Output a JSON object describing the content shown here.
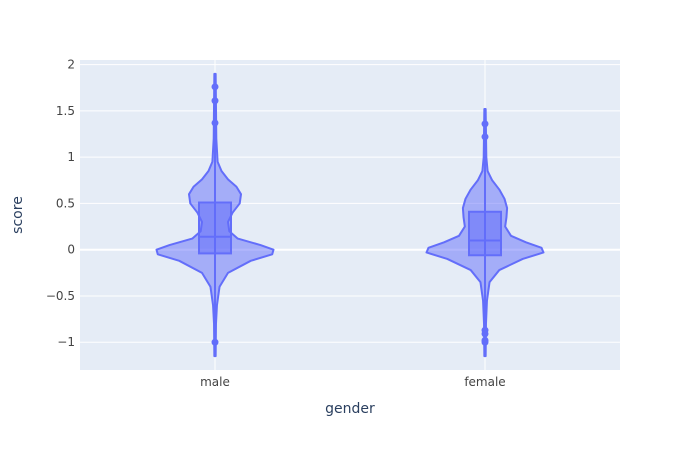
{
  "chart_data": {
    "type": "violin",
    "title": "",
    "xlabel": "gender",
    "ylabel": "score",
    "ylim": [
      -1.3,
      2.05
    ],
    "yticks": [
      -1,
      -0.5,
      0,
      0.5,
      1,
      1.5,
      2
    ],
    "ytick_labels": [
      "−1",
      "−0.5",
      "0",
      "0.5",
      "1",
      "1.5",
      "2"
    ],
    "categories": [
      "male",
      "female"
    ],
    "grid": true,
    "colors": {
      "plot_bg": "#e5ecf6",
      "grid": "#ffffff",
      "fill": "#636efa",
      "line": "#636efa",
      "text": "#444444",
      "title_text": "#2a3f5f"
    },
    "violins": [
      {
        "category": "male",
        "box": {
          "q1": -0.04,
          "median": 0.14,
          "q3": 0.51,
          "lower_fence": -0.6,
          "upper_fence": 0.9
        },
        "whisker": [
          -1.15,
          1.9
        ],
        "outliers": [
          1.76,
          1.61,
          1.37,
          -1.0
        ],
        "density": [
          [
            -1.15,
            0.01
          ],
          [
            -0.8,
            0.015
          ],
          [
            -0.6,
            0.03
          ],
          [
            -0.4,
            0.07
          ],
          [
            -0.25,
            0.2
          ],
          [
            -0.12,
            0.55
          ],
          [
            -0.05,
            0.88
          ],
          [
            0.0,
            0.9
          ],
          [
            0.05,
            0.7
          ],
          [
            0.12,
            0.35
          ],
          [
            0.2,
            0.22
          ],
          [
            0.3,
            0.2
          ],
          [
            0.4,
            0.27
          ],
          [
            0.5,
            0.38
          ],
          [
            0.6,
            0.4
          ],
          [
            0.68,
            0.33
          ],
          [
            0.76,
            0.2
          ],
          [
            0.85,
            0.1
          ],
          [
            0.95,
            0.04
          ],
          [
            1.2,
            0.02
          ],
          [
            1.9,
            0.01
          ]
        ]
      },
      {
        "category": "female",
        "box": {
          "q1": -0.06,
          "median": 0.1,
          "q3": 0.41,
          "lower_fence": -0.55,
          "upper_fence": 0.85
        },
        "whisker": [
          -1.15,
          1.52
        ],
        "outliers": [
          1.36,
          1.22,
          -0.87,
          -0.91,
          -0.98,
          -1.0
        ],
        "density": [
          [
            -1.15,
            0.01
          ],
          [
            -0.8,
            0.015
          ],
          [
            -0.55,
            0.03
          ],
          [
            -0.35,
            0.07
          ],
          [
            -0.22,
            0.22
          ],
          [
            -0.1,
            0.58
          ],
          [
            -0.03,
            0.9
          ],
          [
            0.02,
            0.87
          ],
          [
            0.08,
            0.63
          ],
          [
            0.15,
            0.4
          ],
          [
            0.25,
            0.31
          ],
          [
            0.35,
            0.33
          ],
          [
            0.45,
            0.34
          ],
          [
            0.55,
            0.3
          ],
          [
            0.65,
            0.22
          ],
          [
            0.75,
            0.11
          ],
          [
            0.85,
            0.04
          ],
          [
            1.0,
            0.02
          ],
          [
            1.52,
            0.01
          ]
        ]
      }
    ]
  }
}
